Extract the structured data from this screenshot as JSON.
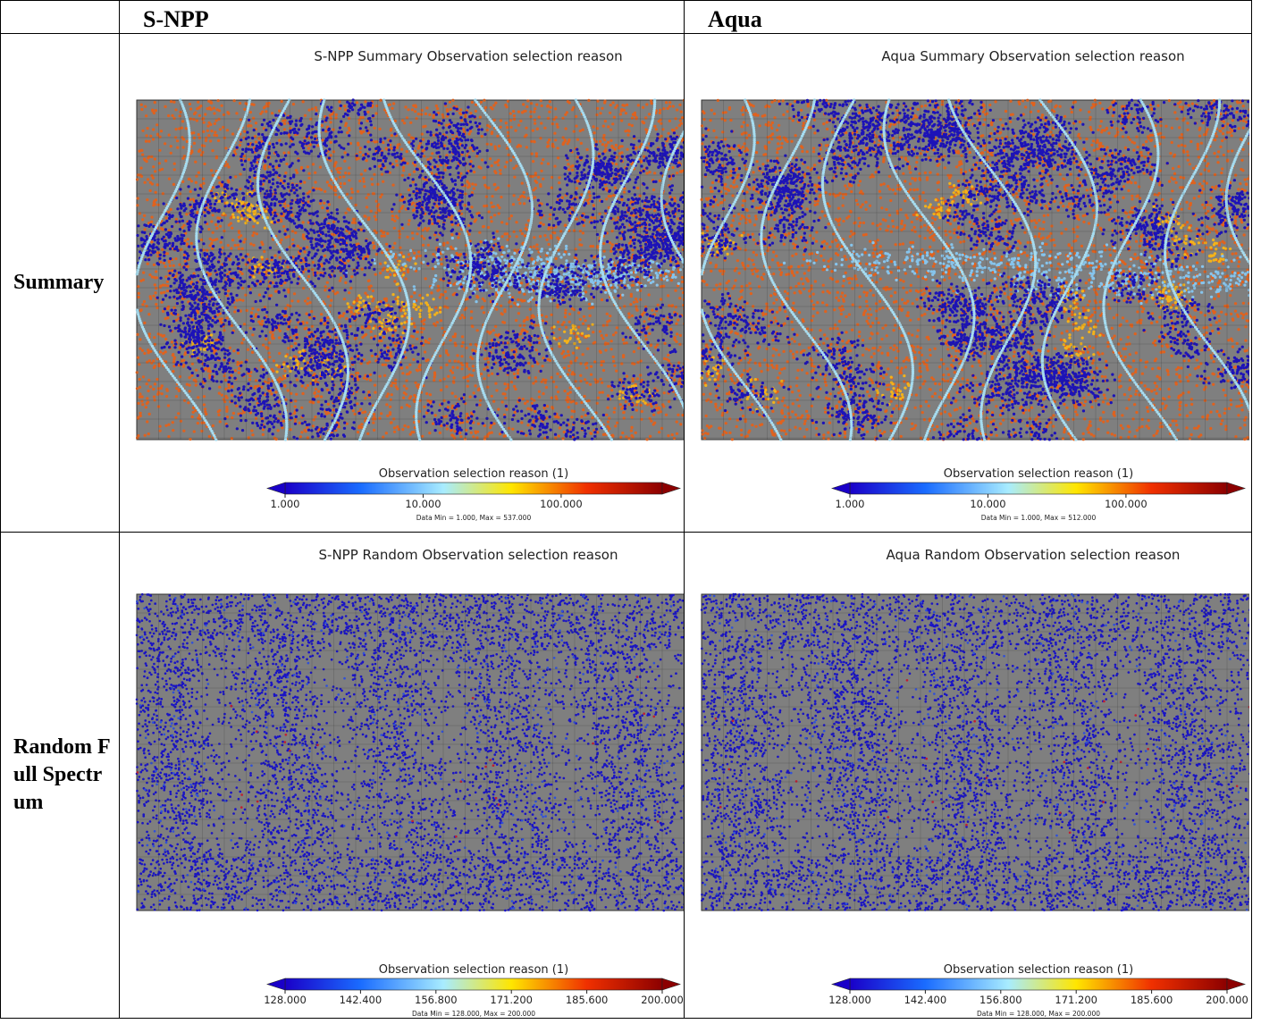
{
  "table": {
    "columns": [
      "S-NPP",
      "Aqua"
    ],
    "rows": [
      {
        "label": "Summary",
        "panels": [
          {
            "title": "S-NPP Summary Observation selection reason",
            "colorbar_label": "Observation selection reason (1)",
            "ticks": [
              "1.000",
              "10.000",
              "100.000"
            ],
            "note": "Data Min = 1.000, Max = 537.000"
          },
          {
            "title": "Aqua Summary Observation selection reason",
            "colorbar_label": "Observation selection reason (1)",
            "ticks": [
              "1.000",
              "10.000",
              "100.000"
            ],
            "note": "Data Min = 1.000, Max = 512.000"
          }
        ]
      },
      {
        "label": "Random Full Spectrum",
        "panels": [
          {
            "title": "S-NPP Random Observation selection reason",
            "colorbar_label": "Observation selection reason (1)",
            "ticks": [
              "128.000",
              "142.400",
              "156.800",
              "171.200",
              "185.600",
              "200.000"
            ],
            "note": "Data Min = 128.000, Max = 200.000"
          },
          {
            "title": "Aqua Random Observation selection reason",
            "colorbar_label": "Observation selection reason (1)",
            "ticks": [
              "128.000",
              "142.400",
              "156.800",
              "171.200",
              "185.600",
              "200.000"
            ],
            "note": "Data Min = 128.000, Max = 200.000"
          }
        ]
      }
    ]
  }
}
